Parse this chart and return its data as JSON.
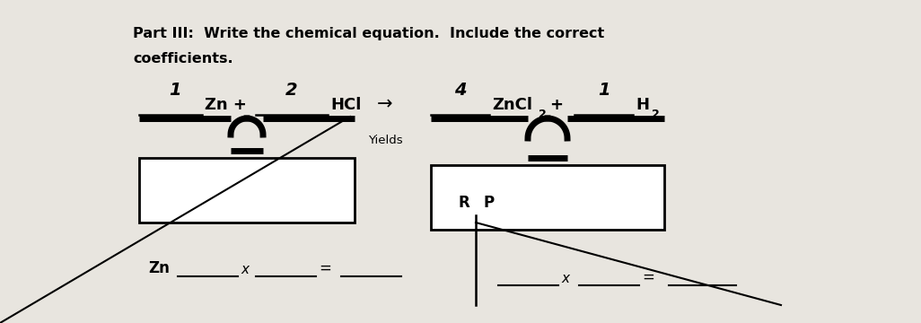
{
  "bg_color": "#e8e5df",
  "title_line1": "Part III:  Write the chemical equation.  Include the correct",
  "title_line2": "coefficients.",
  "coeff_left_1": "1",
  "coeff_left_2": "2",
  "coeff_right_1": "4",
  "coeff_right_2": "1",
  "sub_cl2": "2",
  "sub_h2": "2",
  "arrow_text": "→",
  "yields_text": "Yields",
  "R_label": "R",
  "P_label": "P",
  "bottom_left_label": "Zn",
  "bottom_left_x": "x",
  "bottom_left_eq": "=",
  "bottom_right_x": "x",
  "bottom_right_eq": "="
}
